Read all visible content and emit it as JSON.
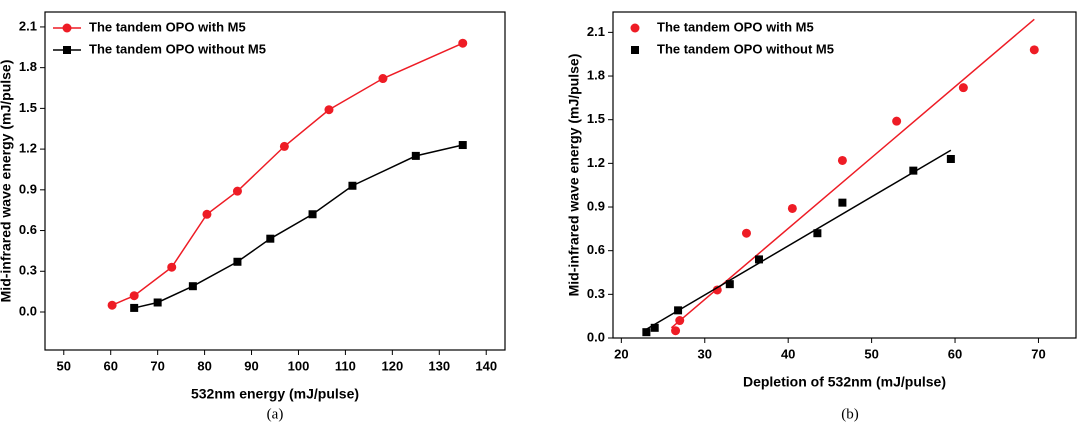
{
  "chart_data": [
    {
      "type": "line",
      "caption": "(a)",
      "x_label": "532nm energy (mJ/pulse)",
      "y_label": "Mid-infrared wave energy (mJ/pulse)",
      "xlim": [
        46,
        144
      ],
      "xticks": [
        50,
        60,
        70,
        80,
        90,
        100,
        110,
        120,
        130,
        140
      ],
      "ylim": [
        -0.28,
        2.21
      ],
      "yticks": [
        {
          "value": 0,
          "label": "0.0"
        },
        0.3,
        0.6,
        0.9,
        1.2,
        1.5,
        1.8,
        2.1
      ],
      "legend": "upper left",
      "series": [
        {
          "name": "The tandem OPO with M5",
          "color": "#ee1c25",
          "marker": "circle",
          "x": [
            60.3,
            65,
            73,
            80.5,
            87,
            97,
            106.5,
            118,
            135
          ],
          "values": [
            0.05,
            0.12,
            0.33,
            0.72,
            0.89,
            1.22,
            1.49,
            1.72,
            1.98
          ]
        },
        {
          "name": "The tandem OPO without M5",
          "color": "#000000",
          "marker": "square",
          "x": [
            65,
            70,
            77.5,
            87,
            94,
            103,
            111.5,
            125,
            135
          ],
          "values": [
            0.03,
            0.07,
            0.19,
            0.37,
            0.54,
            0.72,
            0.93,
            1.15,
            1.23
          ]
        }
      ]
    },
    {
      "type": "scatter",
      "caption": "(b)",
      "x_label": "Depletion of 532nm (mJ/pulse)",
      "y_label": "Mid-infrared wave energy (mJ/pulse)",
      "xlim": [
        19,
        74.5
      ],
      "xticks": [
        20,
        30,
        40,
        50,
        60,
        70
      ],
      "ylim": [
        0,
        2.24
      ],
      "yticks": [
        {
          "value": 0,
          "label": "0.0"
        },
        0.3,
        0.6,
        0.9,
        1.2,
        1.5,
        1.8,
        2.1
      ],
      "legend": "upper left",
      "series": [
        {
          "name": "The tandem OPO with M5",
          "color": "#ee1c25",
          "marker": "circle",
          "x": [
            26.5,
            27,
            31.5,
            35,
            40.5,
            46.5,
            53,
            61,
            69.5
          ],
          "values": [
            0.05,
            0.12,
            0.33,
            0.72,
            0.89,
            1.22,
            1.49,
            1.72,
            1.98
          ],
          "fit": {
            "x": [
              26,
              69.5
            ],
            "values": [
              0.07,
              2.19
            ]
          }
        },
        {
          "name": "The tandem OPO without M5",
          "color": "#000000",
          "marker": "square",
          "x": [
            23,
            24,
            26.8,
            33,
            36.5,
            43.5,
            46.5,
            55,
            59.5
          ],
          "values": [
            0.04,
            0.07,
            0.19,
            0.37,
            0.54,
            0.72,
            0.93,
            1.15,
            1.23
          ],
          "fit": {
            "x": [
              23,
              59.5
            ],
            "values": [
              0.06,
              1.29
            ]
          }
        }
      ]
    }
  ]
}
